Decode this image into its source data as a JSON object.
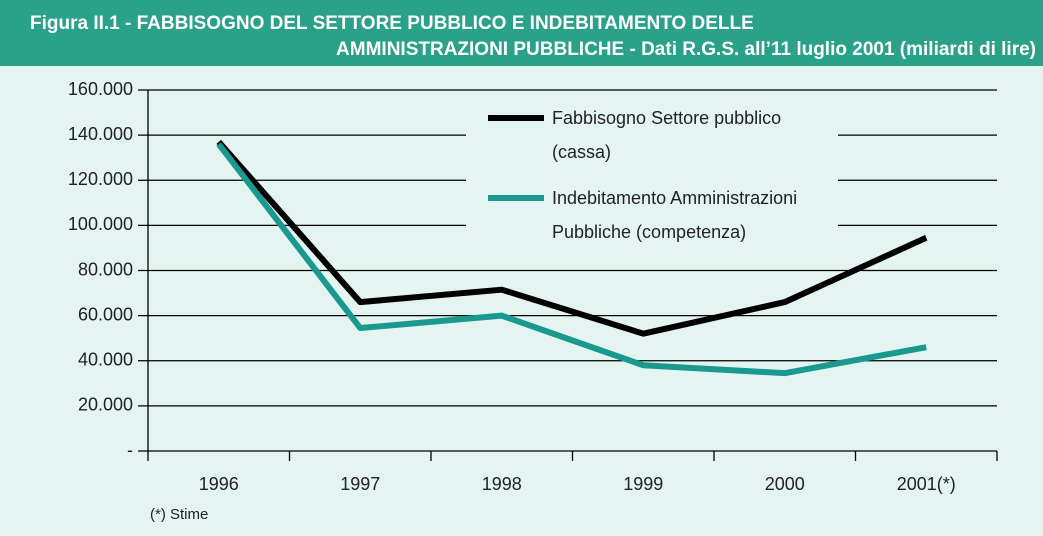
{
  "chart_data": {
    "type": "line",
    "title": [
      "Figura II.1 - FABBISOGNO DEL SETTORE PUBBLICO E INDEBITAMENTO DELLE",
      "AMMINISTRAZIONI PUBBLICHE - Dati R.G.S. all’11 luglio 2001 (miliardi di lire)"
    ],
    "categories": [
      "1996",
      "1997",
      "1998",
      "1999",
      "2000",
      "2001(*)"
    ],
    "series": [
      {
        "name": "Fabbisogno Settore pubblico (cassa)",
        "color": "#000000",
        "values": [
          137000,
          66000,
          71500,
          52000,
          66000,
          94500
        ]
      },
      {
        "name": "Indebitamento Amministrazioni Pubbliche (competenza)",
        "color": "#1a9a8e",
        "values": [
          136000,
          54500,
          60000,
          38000,
          34500,
          46000
        ]
      }
    ],
    "ylim": [
      0,
      160000
    ],
    "yticks": [
      {
        "value": 0,
        "label": "-"
      },
      {
        "value": 20000,
        "label": "20.000"
      },
      {
        "value": 40000,
        "label": "40.000"
      },
      {
        "value": 60000,
        "label": "60.000"
      },
      {
        "value": 80000,
        "label": "80.000"
      },
      {
        "value": 100000,
        "label": "100.000"
      },
      {
        "value": 120000,
        "label": "120.000"
      },
      {
        "value": 140000,
        "label": "140.000"
      },
      {
        "value": 160000,
        "label": "160.000"
      }
    ],
    "grid": true,
    "note": "(*) Stime"
  }
}
